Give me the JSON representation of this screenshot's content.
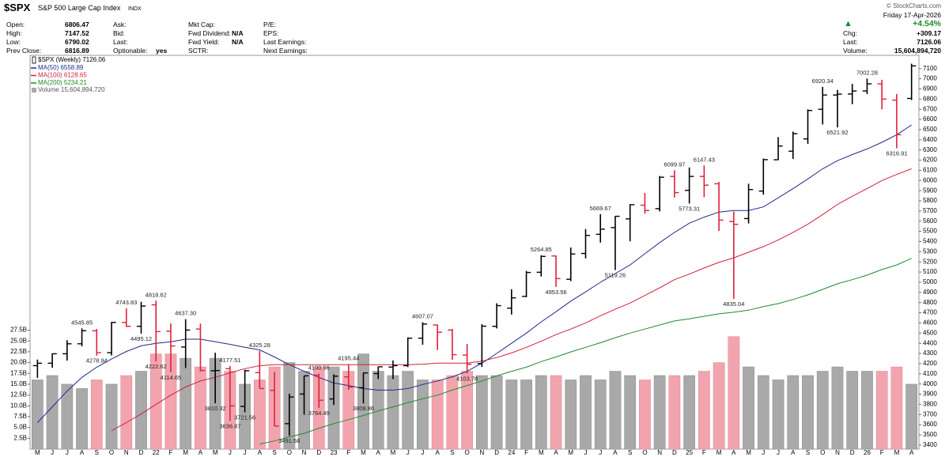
{
  "header": {
    "symbol": "$SPX",
    "name": "S&P 500 Large Cap Index",
    "exchange": "INDX",
    "source": "© StockCharts.com",
    "date": "Friday 17-Apr-2026",
    "change_pct": "+4.54%",
    "columns": [
      [
        {
          "label": "Open:",
          "value": "6806.47"
        },
        {
          "label": "High:",
          "value": "7147.52"
        },
        {
          "label": "Low:",
          "value": "6790.02"
        },
        {
          "label": "Prev Close:",
          "value": "6816.89"
        }
      ],
      [
        {
          "label": "Ask:"
        },
        {
          "label": "Bid:"
        },
        {
          "label": "Last:"
        },
        {
          "label": "Optionable:",
          "value": "yes"
        }
      ],
      [
        {
          "label": "Mkt Cap:"
        },
        {
          "label": "Fwd Dividend:",
          "value": "N/A"
        },
        {
          "label": "Fwd Yield:",
          "value": "N/A"
        },
        {
          "label": "SCTR:"
        }
      ],
      [
        {
          "label": "P/E:"
        },
        {
          "label": "EPS:"
        },
        {
          "label": "Last Earnings:"
        },
        {
          "label": "Next Earnings:"
        }
      ]
    ],
    "right_fields": [
      {
        "label": "Chg:",
        "value": "+309.17"
      },
      {
        "label": "Last:",
        "value": "7126.06"
      },
      {
        "label": "Volume:",
        "value": "15,604,894,720"
      }
    ]
  },
  "chart_data": {
    "type": "ohlc",
    "price_label": "$SPX (Weekly) 7126.06",
    "categories": [
      "M",
      "J",
      "J",
      "A",
      "S",
      "O",
      "N",
      "D",
      "22",
      "F",
      "M",
      "A",
      "M",
      "J",
      "J",
      "A",
      "S",
      "O",
      "N",
      "D",
      "23",
      "F",
      "M",
      "A",
      "M",
      "J",
      "J",
      "A",
      "S",
      "O",
      "N",
      "D",
      "24",
      "F",
      "M",
      "A",
      "M",
      "J",
      "J",
      "A",
      "S",
      "O",
      "N",
      "D",
      "25",
      "F",
      "M",
      "A",
      "M",
      "J",
      "J",
      "A",
      "S",
      "O",
      "N",
      "D",
      "26",
      "F",
      "M",
      "A"
    ],
    "open": [
      4180,
      4204,
      4297,
      4395,
      4523,
      4308,
      4605,
      4567,
      4778,
      4519,
      4363,
      4540,
      4130,
      4150,
      3780,
      4112,
      3937,
      3610,
      3901,
      4087,
      3853,
      4070,
      3963,
      4102,
      4166,
      4180,
      4450,
      4580,
      4530,
      4284,
      4201,
      4567,
      4745,
      4861,
      5098,
      5258,
      5029,
      5283,
      5471,
      5537,
      5623,
      5757,
      5723,
      6040,
      5903,
      6040,
      5968,
      5597,
      5626,
      5896,
      6204,
      6288,
      6409,
      6700,
      6840,
      6850,
      6880,
      6950,
      6790,
      6806.47
    ],
    "high": [
      4240,
      4300,
      4430,
      4545.85,
      4540,
      4610,
      4743.83,
      4808,
      4818.62,
      4595,
      4637.3,
      4593,
      4307,
      4177.51,
      4140,
      4325.28,
      4119,
      3905,
      4080,
      4100.96,
      4095,
      4195.44,
      4110,
      4170,
      4231,
      4458,
      4607.07,
      4584,
      4541,
      4393,
      4587,
      4793,
      4931,
      5111,
      5264.85,
      5263,
      5341,
      5523,
      5669.67,
      5651,
      5767,
      5878,
      6044,
      6099.97,
      6128,
      6147.43,
      5986,
      5695,
      5968,
      6215,
      6427,
      6481,
      6699,
      6920.34,
      6890,
      6950,
      7002.28,
      6990,
      6850,
      7147.52
    ],
    "low": [
      4060,
      4160,
      4230,
      4370,
      4278.94,
      4280,
      4560,
      4495.12,
      4222.62,
      4114.65,
      4157,
      4124,
      3810.32,
      3636.87,
      3721.56,
      3954,
      3584,
      3491.58,
      3698,
      3764.49,
      3794,
      3943,
      3808.86,
      4049,
      4048,
      4166,
      4385,
      4335,
      4238,
      4103.78,
      4167,
      4546,
      4682,
      4853,
      5056,
      4953.56,
      5011,
      5234,
      5390,
      5119.26,
      5402,
      5674,
      5696,
      5832,
      5773.31,
      5837,
      5504,
      4835.04,
      5578,
      5861,
      6201,
      6212,
      6360,
      6550,
      6521.92,
      6750,
      6850,
      6700,
      6316.91,
      6790.02
    ],
    "close": [
      4204,
      4297,
      4395,
      4523,
      4308,
      4605,
      4567,
      4766,
      4515,
      4374,
      4530,
      4132,
      4132,
      3785,
      4130,
      3955,
      3586,
      3872,
      4080,
      3840,
      4077,
      3970,
      4109,
      4169,
      4180,
      4450,
      4589,
      4508,
      4288,
      4194,
      4568,
      4770,
      4846,
      5096,
      5254,
      5036,
      5278,
      5460,
      5522,
      5648,
      5762,
      5705,
      6032,
      5881,
      6040,
      5954,
      5611,
      5569,
      5911,
      6205,
      6339,
      6460,
      6688,
      6840,
      6849,
      6880,
      6950,
      6800,
      6450,
      7126.06
    ],
    "up_color": "#000000",
    "down_color": "#e0203a",
    "ylim": [
      3360,
      7230
    ],
    "yticks": [
      3400,
      3500,
      3600,
      3700,
      3800,
      3900,
      4000,
      4100,
      4200,
      4300,
      4400,
      4500,
      4600,
      4700,
      4800,
      4900,
      5000,
      5100,
      5200,
      5300,
      5400,
      5500,
      5600,
      5700,
      5800,
      5900,
      6000,
      6100,
      6200,
      6300,
      6400,
      6500,
      6600,
      6700,
      6800,
      6900,
      7000,
      7100
    ],
    "series": [
      {
        "name": "MA(50) 6558.89",
        "color": "#1f2a8a",
        "values": [
          3620,
          3775,
          3930,
          4065,
          4165,
          4245,
          4320,
          4375,
          4400,
          4415,
          4440,
          4440,
          4415,
          4390,
          4360,
          4335,
          4265,
          4190,
          4125,
          4065,
          4010,
          3985,
          3955,
          3940,
          3940,
          3955,
          3995,
          4030,
          4070,
          4125,
          4205,
          4300,
          4400,
          4500,
          4610,
          4710,
          4815,
          4905,
          5000,
          5085,
          5170,
          5280,
          5390,
          5490,
          5580,
          5640,
          5690,
          5705,
          5705,
          5740,
          5830,
          5920,
          6015,
          6115,
          6195,
          6255,
          6310,
          6375,
          6450,
          6545
        ]
      },
      {
        "name": "MA(100) 6128.65",
        "color": "#d0203a",
        "values": [
          null,
          null,
          null,
          null,
          null,
          3540,
          3620,
          3705,
          3800,
          3890,
          3970,
          4030,
          4065,
          4110,
          4150,
          4180,
          4190,
          4190,
          4190,
          4190,
          4190,
          4190,
          4190,
          4190,
          4190,
          4190,
          4195,
          4205,
          4205,
          4205,
          4225,
          4260,
          4305,
          4360,
          4420,
          4485,
          4540,
          4600,
          4670,
          4735,
          4795,
          4870,
          4945,
          5025,
          5080,
          5140,
          5195,
          5240,
          5295,
          5350,
          5415,
          5490,
          5570,
          5665,
          5765,
          5845,
          5920,
          6000,
          6060,
          6115
        ]
      },
      {
        "name": "MA(200) 5234.21",
        "color": "#1e8a2a",
        "values": [
          null,
          null,
          null,
          null,
          null,
          null,
          null,
          null,
          null,
          null,
          null,
          null,
          null,
          null,
          null,
          3410,
          3440,
          3480,
          3515,
          3565,
          3610,
          3650,
          3690,
          3735,
          3775,
          3815,
          3855,
          3890,
          3940,
          3985,
          4030,
          4080,
          4125,
          4165,
          4220,
          4265,
          4315,
          4360,
          4405,
          4455,
          4500,
          4540,
          4580,
          4620,
          4640,
          4665,
          4690,
          4705,
          4725,
          4760,
          4790,
          4830,
          4875,
          4930,
          4985,
          5025,
          5070,
          5125,
          5170,
          5235
        ]
      }
    ],
    "volume": {
      "label": "Volume 15,604,894,720",
      "up_color": "#a9a9a9",
      "down_color": "#f2a4ae",
      "values": [
        16,
        17,
        15,
        14,
        16,
        15,
        17,
        18,
        22,
        22,
        21,
        19,
        21,
        18,
        15,
        16,
        19,
        20,
        18,
        19,
        19,
        18,
        22,
        18,
        17,
        18,
        16,
        16,
        17,
        18,
        17,
        17,
        16,
        16,
        17,
        17,
        16,
        17,
        16,
        18,
        17,
        16,
        17,
        17,
        17,
        18,
        20,
        26,
        19,
        17,
        16,
        17,
        17,
        18,
        19,
        18,
        18,
        18,
        19,
        15
      ],
      "ylim": [
        0,
        91
      ],
      "yticks": [
        {
          "value": 2.5,
          "label": "2.5B"
        },
        {
          "value": 5,
          "label": "5.0B"
        },
        {
          "value": 7.5,
          "label": "7.5B"
        },
        {
          "value": 10,
          "label": "10.0B"
        },
        {
          "value": 12.5,
          "label": "12.5B"
        },
        {
          "value": 15,
          "label": "15.0B"
        },
        {
          "value": 17.5,
          "label": "17.5B"
        },
        {
          "value": 20,
          "label": "20.0B"
        },
        {
          "value": 22.5,
          "label": "22.5B"
        },
        {
          "value": 25,
          "label": "25.0B"
        },
        {
          "value": 27.5,
          "label": "27.5B"
        }
      ]
    },
    "annotations": [
      {
        "value": 4545.85,
        "label": "4545.85"
      },
      {
        "value": 4278.94,
        "label": "4278.94"
      },
      {
        "value": 4743.83,
        "label": "4743.83"
      },
      {
        "value": 4495.12,
        "label": "4495.12"
      },
      {
        "value": 4818.62,
        "label": "4818.62"
      },
      {
        "value": 4222.62,
        "label": "4222.62"
      },
      {
        "value": 4114.65,
        "label": "4114.65"
      },
      {
        "value": 4637.3,
        "label": "4637.30"
      },
      {
        "value": 3810.32,
        "label": "3810.32"
      },
      {
        "value": 4177.51,
        "label": "4177.51"
      },
      {
        "value": 3636.87,
        "label": "3636.87"
      },
      {
        "value": 3721.56,
        "label": "3721.56"
      },
      {
        "value": 4325.28,
        "label": "4325.28"
      },
      {
        "value": 3491.58,
        "label": "3491.58"
      },
      {
        "value": 4100.96,
        "label": "4100.96"
      },
      {
        "value": 3764.49,
        "label": "3764.49"
      },
      {
        "value": 4195.44,
        "label": "4195.44"
      },
      {
        "value": 3808.86,
        "label": "3808.86"
      },
      {
        "value": 4607.07,
        "label": "4607.07"
      },
      {
        "value": 4103.78,
        "label": "4103.78"
      },
      {
        "value": 5264.85,
        "label": "5264.85"
      },
      {
        "value": 4953.56,
        "label": "4953.56"
      },
      {
        "value": 5669.67,
        "label": "5669.67"
      },
      {
        "value": 5119.26,
        "label": "5119.26"
      },
      {
        "value": 6099.97,
        "label": "6099.97"
      },
      {
        "value": 5773.31,
        "label": "5773.31"
      },
      {
        "value": 6147.43,
        "label": "6147.43"
      },
      {
        "value": 4835.04,
        "label": "4835.04"
      },
      {
        "value": 6920.34,
        "label": "6920.34"
      },
      {
        "value": 6521.92,
        "label": "6521.92"
      },
      {
        "value": 7002.28,
        "label": "7002.28"
      },
      {
        "value": 6316.91,
        "label": "6316.91"
      }
    ]
  }
}
